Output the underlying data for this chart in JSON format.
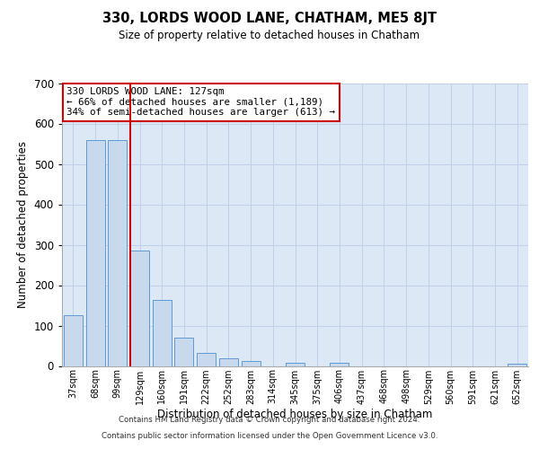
{
  "title": "330, LORDS WOOD LANE, CHATHAM, ME5 8JT",
  "subtitle": "Size of property relative to detached houses in Chatham",
  "xlabel": "Distribution of detached houses by size in Chatham",
  "ylabel": "Number of detached properties",
  "bar_labels": [
    "37sqm",
    "68sqm",
    "99sqm",
    "129sqm",
    "160sqm",
    "191sqm",
    "222sqm",
    "252sqm",
    "283sqm",
    "314sqm",
    "345sqm",
    "375sqm",
    "406sqm",
    "437sqm",
    "468sqm",
    "498sqm",
    "529sqm",
    "560sqm",
    "591sqm",
    "621sqm",
    "652sqm"
  ],
  "bar_values": [
    125,
    558,
    558,
    285,
    163,
    70,
    33,
    20,
    13,
    0,
    8,
    0,
    7,
    0,
    0,
    0,
    0,
    0,
    0,
    0,
    5
  ],
  "bar_color": "#c9d9ed",
  "bar_edge_color": "#5b9bd5",
  "vline_x_index": 3,
  "vline_color": "#cc0000",
  "annotation_text": "330 LORDS WOOD LANE: 127sqm\n← 66% of detached houses are smaller (1,189)\n34% of semi-detached houses are larger (613) →",
  "annotation_box_edge": "#cc0000",
  "ylim": [
    0,
    700
  ],
  "yticks": [
    0,
    100,
    200,
    300,
    400,
    500,
    600,
    700
  ],
  "grid_color": "#c0d0e8",
  "background_color": "#dce8f5",
  "footer_line1": "Contains HM Land Registry data © Crown copyright and database right 2024.",
  "footer_line2": "Contains public sector information licensed under the Open Government Licence v3.0."
}
